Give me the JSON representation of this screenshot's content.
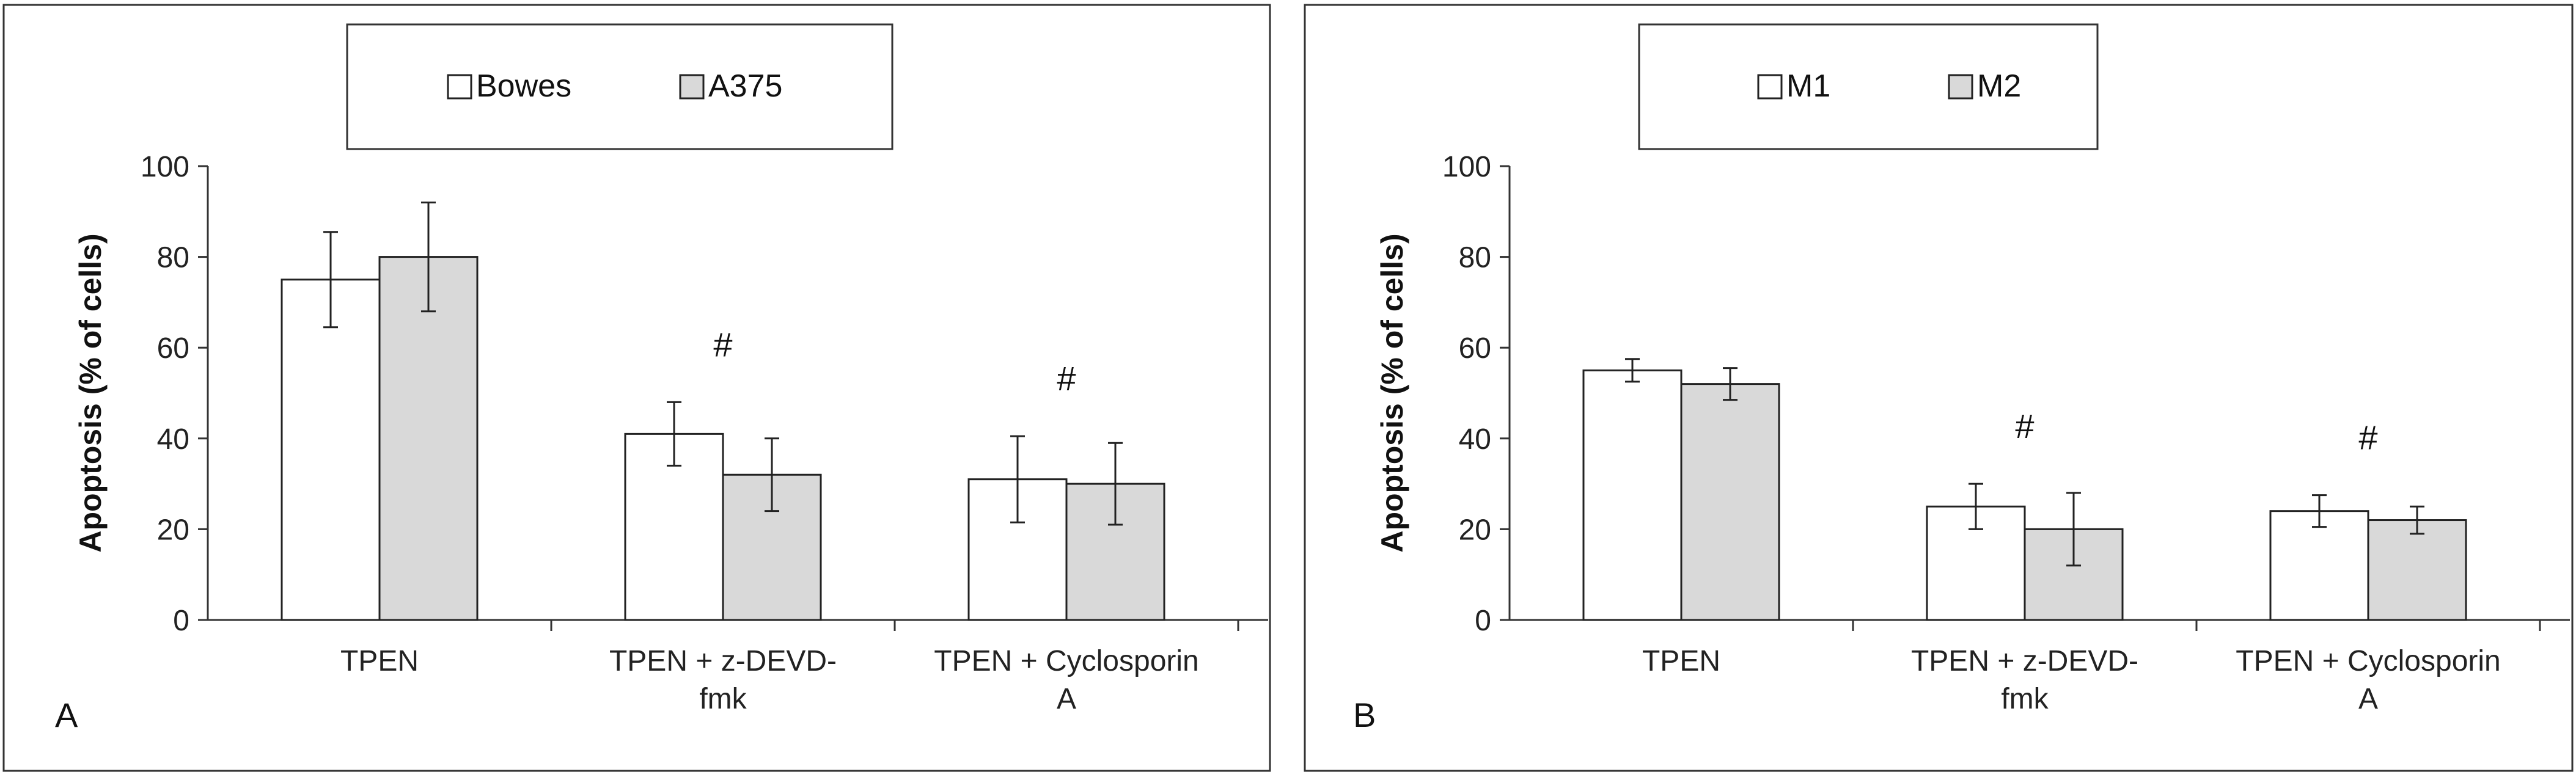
{
  "chart_data": [
    {
      "type": "bar",
      "panel_label": "A",
      "ylabel": "Apoptosis (% of cells)",
      "xlabel": "",
      "ylim": [
        0,
        100
      ],
      "yticks": [
        "0",
        "20",
        "40",
        "60",
        "80",
        "100"
      ],
      "categories": [
        [
          "TPEN"
        ],
        [
          "TPEN + z-DEVD-",
          "fmk"
        ],
        [
          "TPEN + Cyclosporin",
          "A"
        ]
      ],
      "legend": [
        "Bowes",
        "A375"
      ],
      "series": [
        {
          "name": "Bowes",
          "color": "#ffffff",
          "values": [
            75,
            41,
            31
          ],
          "errors": [
            10.5,
            7,
            9.5
          ]
        },
        {
          "name": "A375",
          "color": "#d9d9d9",
          "values": [
            80,
            32,
            30
          ],
          "errors": [
            12,
            8,
            9
          ]
        }
      ],
      "annotations": [
        "",
        "#",
        "#"
      ]
    },
    {
      "type": "bar",
      "panel_label": "B",
      "ylabel": "Apoptosis (% of cells)",
      "xlabel": "",
      "ylim": [
        0,
        100
      ],
      "yticks": [
        "0",
        "20",
        "40",
        "60",
        "80",
        "100"
      ],
      "categories": [
        [
          "TPEN"
        ],
        [
          "TPEN + z-DEVD-",
          "fmk"
        ],
        [
          "TPEN + Cyclosporin",
          "A"
        ]
      ],
      "legend": [
        "M1",
        "M2"
      ],
      "series": [
        {
          "name": "M1",
          "color": "#ffffff",
          "values": [
            55,
            25,
            24
          ],
          "errors": [
            2.5,
            5,
            3.5
          ]
        },
        {
          "name": "M2",
          "color": "#d9d9d9",
          "values": [
            52,
            20,
            22
          ],
          "errors": [
            3.5,
            8,
            3
          ]
        }
      ],
      "annotations": [
        "",
        "#",
        "#"
      ]
    }
  ]
}
